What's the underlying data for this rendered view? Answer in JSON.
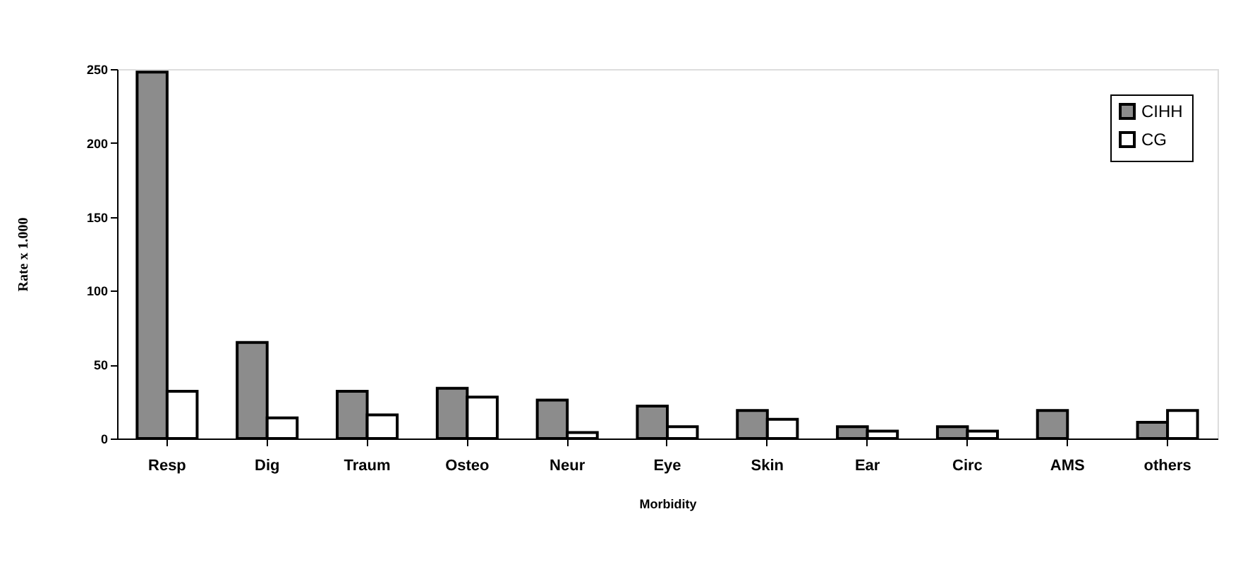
{
  "chart_data": {
    "type": "bar",
    "xlabel": "Morbidity",
    "ylabel": "Rate x 1.000",
    "categories": [
      "Resp",
      "Dig",
      "Traum",
      "Osteo",
      "Neur",
      "Eye",
      "Skin",
      "Ear",
      "Circ",
      "AMS",
      "others"
    ],
    "series": [
      {
        "name": "CIHH",
        "color": "#8c8c8c",
        "values": [
          248,
          65,
          32,
          34,
          26,
          22,
          19,
          8,
          8,
          19,
          11
        ]
      },
      {
        "name": "CG",
        "color": "#ffffff",
        "values": [
          32,
          14,
          16,
          28,
          4,
          8,
          13,
          5,
          5,
          null,
          19
        ]
      }
    ],
    "ylim": [
      0,
      250
    ],
    "yticks": [
      0,
      50,
      100,
      150,
      200,
      250
    ],
    "grid": false,
    "legend": "top right"
  }
}
